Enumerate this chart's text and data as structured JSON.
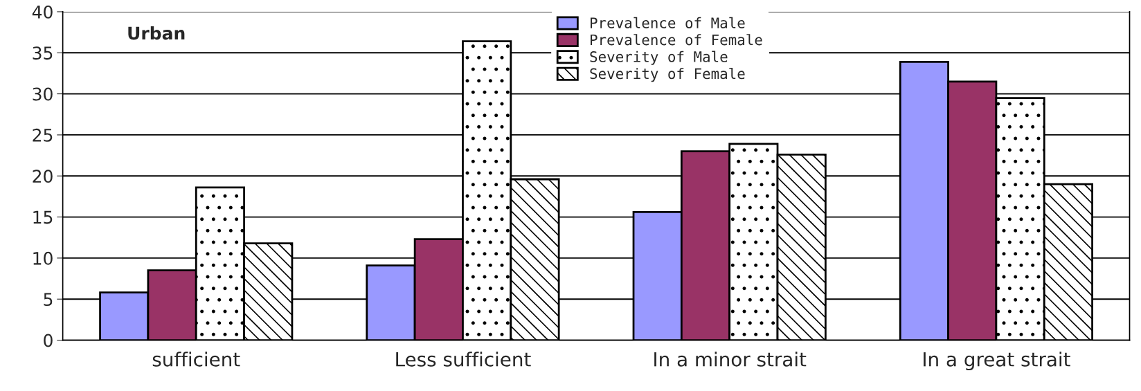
{
  "chart_data": {
    "type": "bar",
    "categories": [
      "sufficient",
      "Less sufficient",
      "In a minor strait",
      "In a great strait"
    ],
    "series": [
      {
        "name": "Prevalence of Male",
        "color": "#9999ff",
        "values": [
          5.8,
          9.1,
          15.6,
          33.9
        ]
      },
      {
        "name": "Prevalence of Female",
        "color": "#993366",
        "values": [
          8.5,
          12.3,
          23.0,
          31.5
        ]
      },
      {
        "name": "Severity of Male",
        "color": "#ffffff",
        "values": [
          18.6,
          36.4,
          23.9,
          29.5
        ]
      },
      {
        "name": "Severity of Female",
        "color": "#ffffff",
        "values": [
          11.8,
          19.6,
          22.6,
          19.0
        ]
      }
    ],
    "ylim": [
      0,
      40
    ],
    "yticks": [
      0,
      5,
      10,
      15,
      20,
      25,
      30,
      35,
      40
    ],
    "grid": "y",
    "legend": "top",
    "annotations": [
      "Urban"
    ]
  }
}
